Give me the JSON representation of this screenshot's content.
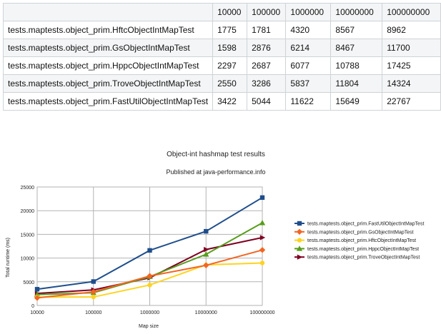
{
  "table": {
    "header": [
      "",
      "10000",
      "100000",
      "1000000",
      "10000000",
      "100000000"
    ],
    "rows": [
      [
        "tests.maptests.object_prim.HftcObjectIntMapTest",
        "1775",
        "1781",
        "4320",
        "8567",
        "8962"
      ],
      [
        "tests.maptests.object_prim.GsObjectIntMapTest",
        "1598",
        "2876",
        "6214",
        "8467",
        "11700"
      ],
      [
        "tests.maptests.object_prim.HppcObjectIntMapTest",
        "2297",
        "2687",
        "6077",
        "10788",
        "17425"
      ],
      [
        "tests.maptests.object_prim.TroveObjectIntMapTest",
        "2550",
        "3286",
        "5837",
        "11804",
        "14324"
      ],
      [
        "tests.maptests.object_prim.FastUtilObjectIntMapTest",
        "3422",
        "5044",
        "11622",
        "15649",
        "22767"
      ]
    ]
  },
  "chart_data": {
    "type": "line",
    "title": "Object-int hashmap test results",
    "subtitle": "Published at java-performance.info",
    "xlabel": "Map size",
    "ylabel": "Total runtime (ms)",
    "categories": [
      "10000",
      "100000",
      "1000000",
      "10000000",
      "100000000"
    ],
    "ylim": [
      0,
      25000
    ],
    "yticks": [
      0,
      5000,
      10000,
      15000,
      20000,
      25000
    ],
    "grid": true,
    "legend_position": "right",
    "series": [
      {
        "name": "tests.maptests.object_prim.FastUtilObjectIntMapTest",
        "values": [
          3422,
          5044,
          11622,
          15649,
          22767
        ],
        "color": "#1f4e8c",
        "marker": "square"
      },
      {
        "name": "tests.maptests.object_prim.GsObjectIntMapTest",
        "values": [
          1598,
          2876,
          6214,
          8467,
          11700
        ],
        "color": "#f26522",
        "marker": "diamond"
      },
      {
        "name": "tests.maptests.object_prim.HftcObjectIntMapTest",
        "values": [
          1775,
          1781,
          4320,
          8567,
          8962
        ],
        "color": "#ffd320",
        "marker": "circle"
      },
      {
        "name": "tests.maptests.object_prim.HppcObjectIntMapTest",
        "values": [
          2297,
          2687,
          6077,
          10788,
          17425
        ],
        "color": "#579d1c",
        "marker": "triangle"
      },
      {
        "name": "tests.maptests.object_prim.TroveObjectIntMapTest",
        "values": [
          2550,
          3286,
          5837,
          11804,
          14324
        ],
        "color": "#7e0021",
        "marker": "arrow"
      }
    ]
  }
}
